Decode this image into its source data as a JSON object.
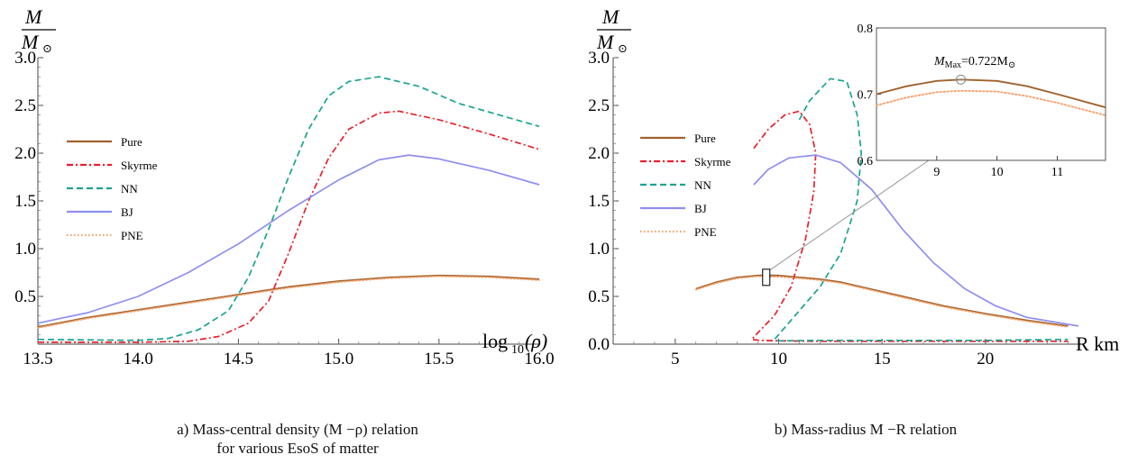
{
  "chart_data": [
    {
      "type": "line",
      "caption_line1": "a) Mass-central density (M −ρ) relation",
      "caption_line2": "for various EsoS of matter",
      "ylabel_num": "M",
      "ylabel_den": "M",
      "ylabel_sun": "⊙",
      "xlabel": "log",
      "xlabel_sub": "10",
      "xlabel_arg": "(ρ)",
      "xlim": [
        13.5,
        16.0
      ],
      "ylim": [
        0.0,
        3.0
      ],
      "x_ticks": [
        13.5,
        14.0,
        14.5,
        15.0,
        15.5,
        16.0
      ],
      "x_tick_labels": [
        "13.5",
        "14.0",
        "14.5",
        "15.0",
        "15.5",
        "16.0"
      ],
      "y_ticks": [
        0.5,
        1.0,
        1.5,
        2.0,
        2.5,
        3.0
      ],
      "y_tick_labels": [
        "0.5",
        "1.0",
        "1.5",
        "2.0",
        "2.5",
        "3.0"
      ],
      "legend_position": "left",
      "series": [
        {
          "name": "Pure",
          "color": "#a0622d",
          "dash": "solid",
          "x": [
            13.5,
            13.75,
            14.0,
            14.25,
            14.5,
            14.75,
            15.0,
            15.25,
            15.5,
            15.75,
            16.0
          ],
          "y": [
            0.18,
            0.28,
            0.36,
            0.44,
            0.52,
            0.6,
            0.66,
            0.7,
            0.72,
            0.71,
            0.68
          ]
        },
        {
          "name": "Skyrme",
          "color": "#e8202a",
          "dash": "dashdot",
          "x": [
            13.5,
            14.0,
            14.25,
            14.4,
            14.55,
            14.65,
            14.75,
            14.85,
            14.95,
            15.05,
            15.2,
            15.3,
            15.5,
            15.75,
            16.0
          ],
          "y": [
            0.02,
            0.02,
            0.03,
            0.08,
            0.22,
            0.45,
            0.95,
            1.5,
            1.95,
            2.25,
            2.42,
            2.44,
            2.35,
            2.2,
            2.04
          ]
        },
        {
          "name": "NN",
          "color": "#1aa391",
          "dash": "dashed",
          "x": [
            13.5,
            14.0,
            14.15,
            14.3,
            14.45,
            14.55,
            14.65,
            14.75,
            14.85,
            14.95,
            15.05,
            15.2,
            15.4,
            15.6,
            15.8,
            16.0
          ],
          "y": [
            0.05,
            0.04,
            0.06,
            0.15,
            0.35,
            0.7,
            1.2,
            1.75,
            2.25,
            2.6,
            2.75,
            2.8,
            2.7,
            2.52,
            2.4,
            2.28
          ]
        },
        {
          "name": "BJ",
          "color": "#8f8ff0",
          "dash": "solid",
          "x": [
            13.5,
            13.75,
            14.0,
            14.25,
            14.5,
            14.75,
            15.0,
            15.2,
            15.35,
            15.5,
            15.75,
            16.0
          ],
          "y": [
            0.22,
            0.33,
            0.5,
            0.75,
            1.05,
            1.4,
            1.72,
            1.93,
            1.98,
            1.94,
            1.82,
            1.67
          ]
        },
        {
          "name": "PNE",
          "color": "#f5a06a",
          "dash": "dotted",
          "x": [
            13.5,
            13.75,
            14.0,
            14.25,
            14.5,
            14.75,
            15.0,
            15.25,
            15.5,
            15.75,
            16.0
          ],
          "y": [
            0.17,
            0.27,
            0.35,
            0.43,
            0.51,
            0.59,
            0.65,
            0.69,
            0.71,
            0.7,
            0.67
          ]
        }
      ]
    },
    {
      "type": "line",
      "caption_line1": "b)  Mass-radius M −R relation",
      "ylabel_num": "M",
      "ylabel_den": "M",
      "ylabel_sun": "⊙",
      "xlabel": "R km",
      "xlim": [
        2.0,
        24.5
      ],
      "ylim": [
        0.0,
        3.0
      ],
      "x_ticks": [
        5,
        10,
        15,
        20
      ],
      "x_tick_labels": [
        "5",
        "10",
        "15",
        "20"
      ],
      "y_ticks": [
        0.0,
        0.5,
        1.0,
        1.5,
        2.0,
        2.5,
        3.0
      ],
      "y_tick_labels": [
        "0.0",
        "0.5",
        "1.0",
        "1.5",
        "2.0",
        "2.5",
        "3.0"
      ],
      "legend_position": "left",
      "series": [
        {
          "name": "Pure",
          "color": "#a0622d",
          "dash": "solid",
          "x": [
            6.0,
            7.0,
            8.0,
            9.0,
            9.4,
            10.0,
            11.0,
            12.0,
            13.0,
            14.0,
            16.0,
            18.0,
            20.0,
            22.0,
            24.0
          ],
          "y": [
            0.58,
            0.65,
            0.7,
            0.72,
            0.722,
            0.72,
            0.7,
            0.68,
            0.65,
            0.6,
            0.5,
            0.4,
            0.32,
            0.25,
            0.19
          ]
        },
        {
          "name": "Skyrme",
          "color": "#e8202a",
          "dash": "dashdot",
          "x": [
            8.8,
            9.5,
            10.3,
            11.0,
            11.5,
            11.8,
            11.7,
            11.3,
            10.6,
            9.8,
            9.0,
            8.7,
            9.1,
            10.0,
            12.0,
            15.0,
            20.0,
            24.0
          ],
          "y": [
            2.05,
            2.25,
            2.4,
            2.44,
            2.3,
            2.0,
            1.6,
            1.1,
            0.6,
            0.3,
            0.12,
            0.05,
            0.04,
            0.035,
            0.03,
            0.03,
            0.03,
            0.03
          ]
        },
        {
          "name": "NN",
          "color": "#1aa391",
          "dash": "dashed",
          "x": [
            11.0,
            11.5,
            12.5,
            13.3,
            13.8,
            14.0,
            13.8,
            13.0,
            12.0,
            11.0,
            10.2,
            9.8,
            10.0,
            12.0,
            15.0,
            20.0,
            24.0
          ],
          "y": [
            2.35,
            2.55,
            2.78,
            2.75,
            2.4,
            2.0,
            1.5,
            0.95,
            0.6,
            0.35,
            0.15,
            0.05,
            0.035,
            0.04,
            0.04,
            0.04,
            0.05
          ]
        },
        {
          "name": "BJ",
          "color": "#8f8ff0",
          "dash": "solid",
          "x": [
            8.8,
            9.5,
            10.5,
            11.8,
            13.0,
            14.5,
            16.0,
            17.5,
            19.0,
            20.5,
            22.0,
            24.5
          ],
          "y": [
            1.67,
            1.83,
            1.95,
            1.98,
            1.9,
            1.62,
            1.2,
            0.85,
            0.58,
            0.4,
            0.28,
            0.19
          ]
        },
        {
          "name": "PNE",
          "color": "#f5a06a",
          "dash": "dotted",
          "x": [
            6.0,
            7.0,
            8.0,
            9.0,
            9.4,
            10.0,
            11.0,
            12.0,
            13.0,
            14.0,
            16.0,
            18.0,
            20.0,
            22.0,
            24.0
          ],
          "y": [
            0.57,
            0.64,
            0.69,
            0.71,
            0.705,
            0.705,
            0.69,
            0.67,
            0.64,
            0.59,
            0.49,
            0.39,
            0.31,
            0.24,
            0.18
          ]
        }
      ],
      "inset": {
        "xlim": [
          8.0,
          11.8
        ],
        "ylim": [
          0.6,
          0.8
        ],
        "x_ticks": [
          9,
          10,
          11
        ],
        "x_tick_labels": [
          "9",
          "10",
          "11"
        ],
        "y_ticks": [
          0.6,
          0.7,
          0.8
        ],
        "y_tick_labels": [
          "0.6",
          "0.7",
          "0.8"
        ],
        "annotation_main": "M",
        "annotation_sub": "Max",
        "annotation_rest": "=0.722M",
        "annotation_sun": "⊙",
        "max_point": {
          "x": 9.4,
          "y": 0.722
        },
        "zoom_box": {
          "x": 9.4,
          "y": 0.7
        },
        "series": [
          {
            "name": "Pure",
            "color": "#a0622d",
            "dash": "solid",
            "x": [
              8.0,
              8.5,
              9.0,
              9.4,
              10.0,
              10.5,
              11.0,
              11.8
            ],
            "y": [
              0.7,
              0.712,
              0.72,
              0.722,
              0.72,
              0.712,
              0.7,
              0.68
            ]
          },
          {
            "name": "PNE",
            "color": "#f5a06a",
            "dash": "dotted",
            "x": [
              8.0,
              8.5,
              9.0,
              9.4,
              10.0,
              10.5,
              11.0,
              11.8
            ],
            "y": [
              0.683,
              0.695,
              0.703,
              0.705,
              0.704,
              0.697,
              0.687,
              0.668
            ]
          }
        ]
      }
    }
  ]
}
